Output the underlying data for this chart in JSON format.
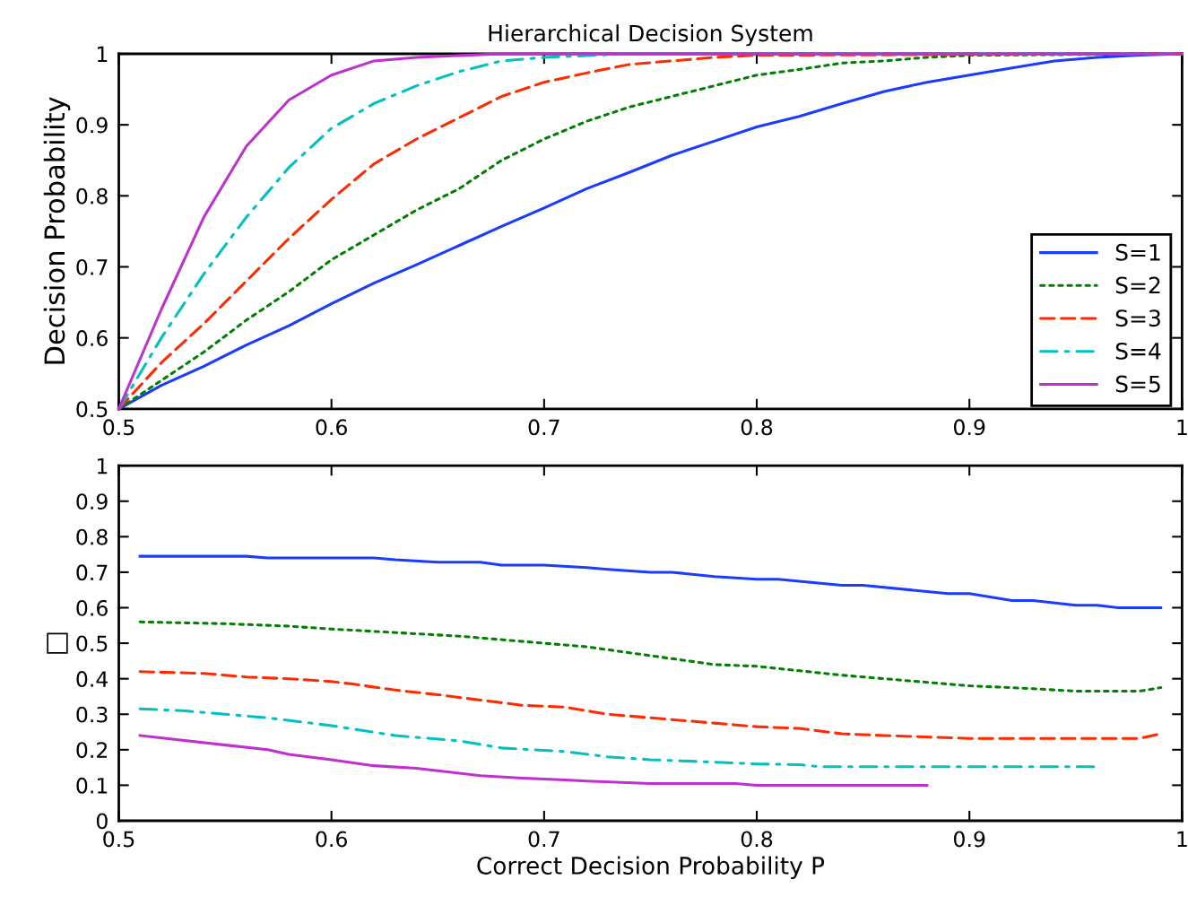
{
  "chart_data": [
    {
      "type": "line",
      "title": "Hierarchical Decision System",
      "ylabel": "Decision Probability",
      "xlim": [
        0.5,
        1
      ],
      "ylim": [
        0.5,
        1
      ],
      "xticks": [
        0.5,
        0.6,
        0.7,
        0.8,
        0.9,
        1
      ],
      "yticks": [
        0.5,
        0.6,
        0.7,
        0.8,
        0.9,
        1
      ],
      "legend": "right",
      "grid": false,
      "series": [
        {
          "name": "S=1",
          "color": "#1a3cff",
          "line_style": "solid",
          "x": [
            0.5,
            0.52,
            0.54,
            0.56,
            0.58,
            0.6,
            0.62,
            0.64,
            0.66,
            0.68,
            0.7,
            0.72,
            0.74,
            0.76,
            0.78,
            0.8,
            0.82,
            0.84,
            0.86,
            0.88,
            0.9,
            0.92,
            0.94,
            0.96,
            0.98,
            1
          ],
          "values": [
            0.5,
            0.533,
            0.56,
            0.59,
            0.617,
            0.648,
            0.677,
            0.703,
            0.73,
            0.757,
            0.783,
            0.81,
            0.833,
            0.857,
            0.877,
            0.897,
            0.912,
            0.93,
            0.947,
            0.96,
            0.97,
            0.98,
            0.99,
            0.995,
            0.998,
            1
          ]
        },
        {
          "name": "S=2",
          "color": "#008000",
          "line_style": "dotted",
          "x": [
            0.5,
            0.52,
            0.54,
            0.56,
            0.58,
            0.6,
            0.62,
            0.64,
            0.66,
            0.68,
            0.7,
            0.72,
            0.74,
            0.76,
            0.78,
            0.8,
            0.82,
            0.84,
            0.86,
            0.88,
            0.9,
            1
          ],
          "values": [
            0.5,
            0.54,
            0.58,
            0.625,
            0.665,
            0.71,
            0.745,
            0.78,
            0.81,
            0.85,
            0.88,
            0.905,
            0.925,
            0.94,
            0.955,
            0.97,
            0.978,
            0.987,
            0.99,
            0.995,
            0.998,
            1
          ]
        },
        {
          "name": "S=3",
          "color": "#ff2a00",
          "line_style": "dashed",
          "x": [
            0.5,
            0.52,
            0.54,
            0.56,
            0.58,
            0.6,
            0.62,
            0.64,
            0.66,
            0.68,
            0.7,
            0.72,
            0.74,
            0.76,
            0.78,
            0.8,
            1
          ],
          "values": [
            0.5,
            0.565,
            0.62,
            0.68,
            0.74,
            0.795,
            0.845,
            0.88,
            0.91,
            0.94,
            0.96,
            0.973,
            0.985,
            0.99,
            0.995,
            0.998,
            1
          ]
        },
        {
          "name": "S=4",
          "color": "#00c0c0",
          "line_style": "dashdot",
          "x": [
            0.5,
            0.52,
            0.54,
            0.56,
            0.58,
            0.6,
            0.62,
            0.64,
            0.66,
            0.68,
            0.7,
            0.74,
            1
          ],
          "values": [
            0.5,
            0.6,
            0.69,
            0.77,
            0.84,
            0.895,
            0.93,
            0.955,
            0.975,
            0.99,
            0.995,
            1,
            1
          ]
        },
        {
          "name": "S=5",
          "color": "#c030d0",
          "line_style": "solid",
          "x": [
            0.5,
            0.52,
            0.54,
            0.56,
            0.58,
            0.6,
            0.62,
            0.64,
            0.68,
            1
          ],
          "values": [
            0.5,
            0.64,
            0.77,
            0.87,
            0.935,
            0.97,
            0.99,
            0.995,
            1,
            1
          ]
        }
      ]
    },
    {
      "type": "line",
      "xlabel": "Correct Decision Probability P",
      "ylabel": "□",
      "xlim": [
        0.5,
        1
      ],
      "ylim": [
        0,
        1
      ],
      "xticks": [
        0.5,
        0.6,
        0.7,
        0.8,
        0.9,
        1
      ],
      "yticks": [
        0,
        0.1,
        0.2,
        0.3,
        0.4,
        0.5,
        0.6,
        0.7,
        0.8,
        0.9,
        1
      ],
      "grid": false,
      "series": [
        {
          "color": "#1a3cff",
          "line_style": "solid",
          "x": [
            0.51,
            0.56,
            0.57,
            0.62,
            0.63,
            0.65,
            0.67,
            0.68,
            0.7,
            0.72,
            0.73,
            0.75,
            0.76,
            0.78,
            0.8,
            0.81,
            0.84,
            0.85,
            0.89,
            0.9,
            0.92,
            0.93,
            0.95,
            0.96,
            0.97,
            0.99
          ],
          "values": [
            0.745,
            0.745,
            0.74,
            0.74,
            0.735,
            0.728,
            0.728,
            0.72,
            0.72,
            0.713,
            0.708,
            0.7,
            0.7,
            0.688,
            0.68,
            0.68,
            0.663,
            0.663,
            0.64,
            0.64,
            0.62,
            0.62,
            0.607,
            0.607,
            0.6,
            0.6
          ]
        },
        {
          "color": "#008000",
          "line_style": "dotted",
          "x": [
            0.51,
            0.55,
            0.58,
            0.6,
            0.63,
            0.66,
            0.69,
            0.72,
            0.75,
            0.78,
            0.8,
            0.84,
            0.87,
            0.9,
            0.93,
            0.95,
            0.98,
            0.99
          ],
          "values": [
            0.56,
            0.555,
            0.548,
            0.54,
            0.53,
            0.52,
            0.505,
            0.49,
            0.465,
            0.44,
            0.435,
            0.41,
            0.395,
            0.38,
            0.372,
            0.365,
            0.365,
            0.375
          ]
        },
        {
          "color": "#ff2a00",
          "line_style": "dashed",
          "x": [
            0.51,
            0.54,
            0.56,
            0.58,
            0.6,
            0.61,
            0.63,
            0.65,
            0.67,
            0.69,
            0.71,
            0.73,
            0.75,
            0.78,
            0.8,
            0.82,
            0.84,
            0.86,
            0.9,
            0.94,
            0.98,
            0.99
          ],
          "values": [
            0.42,
            0.415,
            0.405,
            0.4,
            0.392,
            0.385,
            0.368,
            0.355,
            0.34,
            0.325,
            0.32,
            0.3,
            0.29,
            0.275,
            0.265,
            0.26,
            0.245,
            0.24,
            0.232,
            0.232,
            0.232,
            0.245
          ]
        },
        {
          "color": "#00c0c0",
          "line_style": "dashdot",
          "x": [
            0.51,
            0.53,
            0.55,
            0.57,
            0.6,
            0.63,
            0.66,
            0.68,
            0.71,
            0.73,
            0.75,
            0.78,
            0.8,
            0.82,
            0.83,
            0.96
          ],
          "values": [
            0.315,
            0.31,
            0.3,
            0.29,
            0.268,
            0.24,
            0.225,
            0.205,
            0.195,
            0.18,
            0.172,
            0.165,
            0.16,
            0.158,
            0.152,
            0.152
          ]
        },
        {
          "color": "#c030d0",
          "line_style": "solid",
          "x": [
            0.51,
            0.57,
            0.58,
            0.6,
            0.62,
            0.64,
            0.67,
            0.69,
            0.71,
            0.72,
            0.75,
            0.79,
            0.8,
            0.88
          ],
          "values": [
            0.24,
            0.2,
            0.187,
            0.172,
            0.155,
            0.148,
            0.127,
            0.12,
            0.115,
            0.112,
            0.105,
            0.105,
            0.1,
            0.1
          ]
        }
      ]
    }
  ]
}
